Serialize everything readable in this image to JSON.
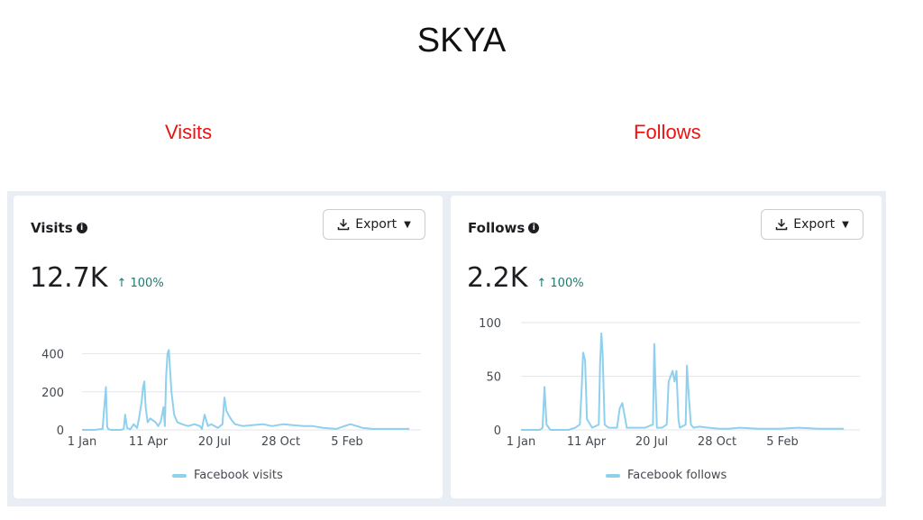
{
  "page": {
    "title": "SKYA",
    "left_label": "Visits",
    "right_label": "Follows"
  },
  "cards": [
    {
      "title": "Visits",
      "export_label": "Export",
      "metric_value": "12.7K",
      "metric_change": "↑ 100%"
    },
    {
      "title": "Follows",
      "export_label": "Export",
      "metric_value": "2.2K",
      "metric_change": "↑ 100%"
    }
  ],
  "chart_data": [
    {
      "type": "line",
      "title": "Visits",
      "x_tick_labels": [
        "1 Jan",
        "11 Apr",
        "20 Jul",
        "28 Oct",
        "5 Feb"
      ],
      "y_ticks": [
        0,
        200,
        400
      ],
      "ylim": [
        0,
        450
      ],
      "grid": true,
      "legend_position": "bottom",
      "series": [
        {
          "name": "Facebook visits",
          "color": "#8fd0ee",
          "x": [
            "2021-12-15",
            "2022-01-01",
            "2022-01-20",
            "2022-02-01",
            "2022-02-06",
            "2022-02-08",
            "2022-02-10",
            "2022-02-14",
            "2022-02-20",
            "2022-03-01",
            "2022-03-05",
            "2022-03-07",
            "2022-03-10",
            "2022-03-15",
            "2022-03-18",
            "2022-03-20",
            "2022-03-25",
            "2022-03-28",
            "2022-04-01",
            "2022-04-03",
            "2022-04-05",
            "2022-04-07",
            "2022-04-10",
            "2022-04-14",
            "2022-04-18",
            "2022-04-22",
            "2022-04-26",
            "2022-04-30",
            "2022-05-04",
            "2022-05-06",
            "2022-05-08",
            "2022-05-10",
            "2022-05-12",
            "2022-05-16",
            "2022-05-20",
            "2022-05-25",
            "2022-06-01",
            "2022-06-10",
            "2022-06-20",
            "2022-06-28",
            "2022-07-01",
            "2022-07-05",
            "2022-07-10",
            "2022-07-15",
            "2022-07-20",
            "2022-07-25",
            "2022-08-01",
            "2022-08-04",
            "2022-08-07",
            "2022-08-10",
            "2022-08-15",
            "2022-08-20",
            "2022-09-01",
            "2022-09-15",
            "2022-10-01",
            "2022-10-15",
            "2022-11-01",
            "2022-11-15",
            "2022-12-01",
            "2022-12-15",
            "2023-01-01",
            "2023-01-20",
            "2023-02-01",
            "2023-02-10",
            "2023-02-20",
            "2023-03-01",
            "2023-03-15",
            "2023-04-01",
            "2023-04-15",
            "2023-05-10"
          ],
          "y": [
            0,
            0,
            0,
            5,
            225,
            15,
            3,
            0,
            0,
            0,
            5,
            80,
            10,
            3,
            20,
            30,
            10,
            60,
            150,
            220,
            255,
            120,
            40,
            60,
            50,
            40,
            20,
            45,
            120,
            20,
            280,
            400,
            420,
            200,
            80,
            40,
            30,
            20,
            30,
            20,
            5,
            80,
            20,
            30,
            20,
            10,
            30,
            170,
            100,
            80,
            50,
            30,
            20,
            25,
            30,
            20,
            30,
            25,
            20,
            20,
            10,
            5,
            20,
            30,
            20,
            10,
            5,
            5,
            5,
            5
          ]
        }
      ]
    },
    {
      "type": "line",
      "title": "Follows",
      "x_tick_labels": [
        "1 Jan",
        "11 Apr",
        "20 Jul",
        "28 Oct",
        "5 Feb"
      ],
      "y_ticks": [
        0,
        50,
        100
      ],
      "ylim": [
        0,
        100
      ],
      "grid": true,
      "legend_position": "bottom",
      "series": [
        {
          "name": "Facebook follows",
          "color": "#8fd0ee",
          "x": [
            "2021-12-15",
            "2022-01-01",
            "2022-01-30",
            "2022-02-03",
            "2022-02-06",
            "2022-02-09",
            "2022-02-15",
            "2022-03-01",
            "2022-03-15",
            "2022-03-25",
            "2022-04-01",
            "2022-04-04",
            "2022-04-06",
            "2022-04-09",
            "2022-04-12",
            "2022-04-20",
            "2022-04-30",
            "2022-05-02",
            "2022-05-04",
            "2022-05-06",
            "2022-05-09",
            "2022-05-15",
            "2022-05-28",
            "2022-06-01",
            "2022-06-05",
            "2022-06-08",
            "2022-06-12",
            "2022-06-20",
            "2022-06-30",
            "2022-07-10",
            "2022-07-22",
            "2022-07-24",
            "2022-07-26",
            "2022-07-28",
            "2022-08-05",
            "2022-08-12",
            "2022-08-15",
            "2022-08-18",
            "2022-08-21",
            "2022-08-24",
            "2022-08-27",
            "2022-08-30",
            "2022-09-01",
            "2022-09-10",
            "2022-09-12",
            "2022-09-15",
            "2022-09-18",
            "2022-09-22",
            "2022-10-01",
            "2022-10-15",
            "2022-11-01",
            "2022-11-15",
            "2022-12-01",
            "2023-01-01",
            "2023-02-01",
            "2023-03-01",
            "2023-04-01",
            "2023-05-10"
          ],
          "y": [
            0,
            0,
            0,
            2,
            40,
            5,
            0,
            0,
            0,
            2,
            5,
            40,
            72,
            65,
            10,
            2,
            5,
            60,
            90,
            70,
            5,
            2,
            2,
            20,
            25,
            15,
            2,
            2,
            2,
            2,
            5,
            80,
            40,
            2,
            2,
            5,
            45,
            50,
            55,
            45,
            55,
            10,
            2,
            5,
            60,
            30,
            5,
            2,
            3,
            2,
            1,
            1,
            2,
            1,
            1,
            2,
            1,
            1
          ]
        }
      ]
    }
  ]
}
